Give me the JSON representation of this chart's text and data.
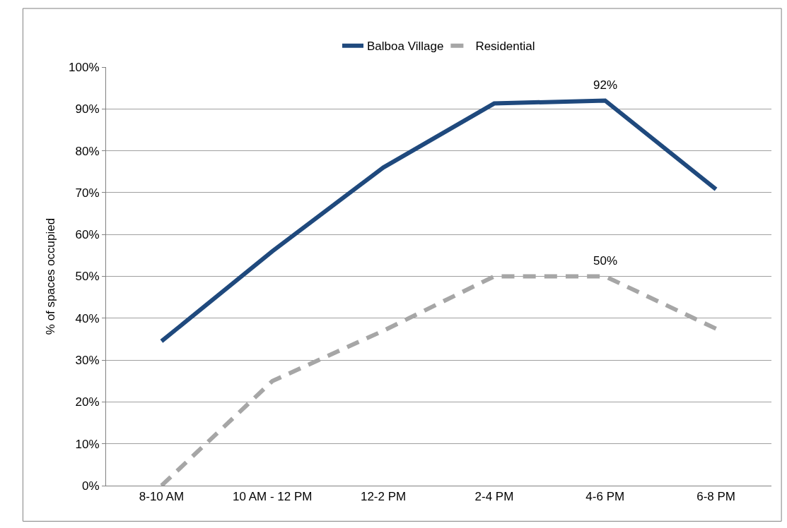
{
  "chart_data": {
    "type": "line",
    "ylabel": "% of spaces occupied",
    "categories": [
      "8-10 AM",
      "10 AM - 12 PM",
      "12-2 PM",
      "2-4 PM",
      "4-6 PM",
      "6-8 PM"
    ],
    "series": [
      {
        "name": "Balboa Village",
        "color": "#1f497d",
        "line_style": "solid",
        "values": [
          34.5,
          56,
          76,
          91.3,
          92,
          70.8
        ],
        "value_labels": [
          null,
          null,
          null,
          null,
          "92%",
          null
        ]
      },
      {
        "name": "Residential",
        "color": "#a6a6a6",
        "line_style": "dashed",
        "values": [
          0,
          25,
          37,
          50,
          50,
          37.5
        ],
        "value_labels": [
          null,
          null,
          null,
          null,
          "50%",
          null
        ]
      }
    ],
    "ylim": [
      0,
      100
    ],
    "yticks": [
      {
        "value": 0,
        "label": "0%"
      },
      {
        "value": 10,
        "label": "10%"
      },
      {
        "value": 20,
        "label": "20%"
      },
      {
        "value": 30,
        "label": "30%"
      },
      {
        "value": 40,
        "label": "40%"
      },
      {
        "value": 50,
        "label": "50%"
      },
      {
        "value": 60,
        "label": "60%"
      },
      {
        "value": 70,
        "label": "70%"
      },
      {
        "value": 80,
        "label": "80%"
      },
      {
        "value": 90,
        "label": "90%"
      },
      {
        "value": 100,
        "label": "100%"
      }
    ],
    "grid": "y",
    "legend": "top",
    "marker": "none"
  }
}
